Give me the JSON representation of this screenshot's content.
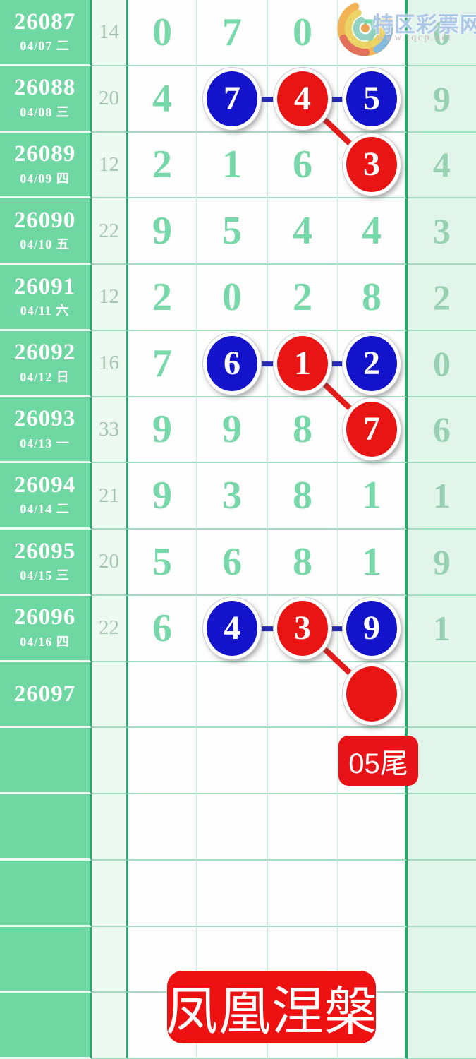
{
  "watermark": {
    "title": "特区彩票网",
    "url": "www.tqcp.net"
  },
  "badge": {
    "label": "05尾"
  },
  "banner": {
    "label": "凤凰涅槃"
  },
  "colors": {
    "row_label_green": "#6fd7a2",
    "grid_dark_green": "#29a76f",
    "digit_mint": "#79d8a9",
    "circle_blue": "#1313cb",
    "circle_red": "#e91414",
    "connector_navy": "#2328b4",
    "connector_red": "#e31b1b",
    "annotation_red": "#ee1111"
  },
  "chart_data": {
    "type": "table",
    "columns": [
      "period",
      "date",
      "sum",
      "digit1",
      "digit2",
      "digit3",
      "digit4",
      "tail"
    ],
    "rows": [
      {
        "period": "26087",
        "date": "04/07 二",
        "sum": "14",
        "digits": [
          "0",
          "7",
          "0",
          "7",
          "0"
        ]
      },
      {
        "period": "26088",
        "date": "04/08 三",
        "sum": "20",
        "digits": [
          "4",
          {
            "v": "7",
            "c": "blue"
          },
          {
            "v": "4",
            "c": "red"
          },
          {
            "v": "5",
            "c": "blue"
          },
          "9"
        ]
      },
      {
        "period": "26089",
        "date": "04/09 四",
        "sum": "12",
        "digits": [
          "2",
          "1",
          "6",
          {
            "v": "3",
            "c": "red"
          },
          "4"
        ]
      },
      {
        "period": "26090",
        "date": "04/10 五",
        "sum": "22",
        "digits": [
          "9",
          "5",
          "4",
          "4",
          "3"
        ]
      },
      {
        "period": "26091",
        "date": "04/11 六",
        "sum": "12",
        "digits": [
          "2",
          "0",
          "2",
          "8",
          "2"
        ]
      },
      {
        "period": "26092",
        "date": "04/12 日",
        "sum": "16",
        "digits": [
          "7",
          {
            "v": "6",
            "c": "blue"
          },
          {
            "v": "1",
            "c": "red"
          },
          {
            "v": "2",
            "c": "blue"
          },
          "0"
        ]
      },
      {
        "period": "26093",
        "date": "04/13 一",
        "sum": "33",
        "digits": [
          "9",
          "9",
          "8",
          {
            "v": "7",
            "c": "red"
          },
          "6"
        ]
      },
      {
        "period": "26094",
        "date": "04/14 二",
        "sum": "21",
        "digits": [
          "9",
          "3",
          "8",
          "1",
          "1"
        ]
      },
      {
        "period": "26095",
        "date": "04/15 三",
        "sum": "20",
        "digits": [
          "5",
          "6",
          "8",
          "1",
          "9"
        ]
      },
      {
        "period": "26096",
        "date": "04/16 四",
        "sum": "22",
        "digits": [
          "6",
          {
            "v": "4",
            "c": "blue"
          },
          {
            "v": "3",
            "c": "red"
          },
          {
            "v": "9",
            "c": "blue"
          },
          "1"
        ]
      },
      {
        "period": "26097",
        "date": "",
        "sum": "",
        "digits": [
          "",
          "",
          "",
          {
            "v": "",
            "c": "red"
          },
          ""
        ]
      },
      {
        "period": "",
        "date": "",
        "sum": "",
        "digits": [
          "",
          "",
          "",
          "",
          ""
        ]
      },
      {
        "period": "",
        "date": "",
        "sum": "",
        "digits": [
          "",
          "",
          "",
          "",
          ""
        ]
      },
      {
        "period": "",
        "date": "",
        "sum": "",
        "digits": [
          "",
          "",
          "",
          "",
          ""
        ]
      },
      {
        "period": "",
        "date": "",
        "sum": "",
        "digits": [
          "",
          "",
          "",
          "",
          ""
        ]
      },
      {
        "period": "",
        "date": "",
        "sum": "",
        "digits": [
          "",
          "",
          "",
          "",
          ""
        ]
      }
    ],
    "connectors": [
      {
        "r1": 1,
        "d1": 1,
        "r2": 1,
        "d2": 2,
        "color": "navy"
      },
      {
        "r1": 1,
        "d1": 2,
        "r2": 1,
        "d2": 3,
        "color": "navy"
      },
      {
        "r1": 1,
        "d1": 2,
        "r2": 2,
        "d2": 3,
        "color": "red"
      },
      {
        "r1": 5,
        "d1": 1,
        "r2": 5,
        "d2": 2,
        "color": "navy"
      },
      {
        "r1": 5,
        "d1": 2,
        "r2": 5,
        "d2": 3,
        "color": "navy"
      },
      {
        "r1": 5,
        "d1": 2,
        "r2": 6,
        "d2": 3,
        "color": "red"
      },
      {
        "r1": 9,
        "d1": 1,
        "r2": 9,
        "d2": 2,
        "color": "navy"
      },
      {
        "r1": 9,
        "d1": 2,
        "r2": 9,
        "d2": 3,
        "color": "navy"
      },
      {
        "r1": 9,
        "d1": 2,
        "r2": 10,
        "d2": 3,
        "color": "red"
      }
    ],
    "layout": {
      "row_height": 93.75,
      "digit_col_centers": [
        231,
        330,
        430,
        529,
        626
      ]
    }
  }
}
